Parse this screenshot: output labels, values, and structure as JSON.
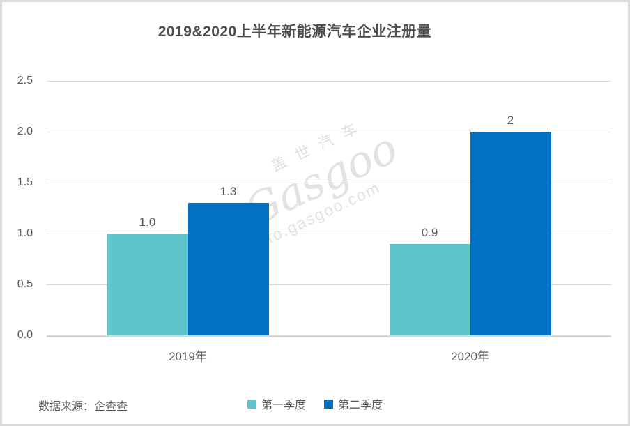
{
  "chart_data": {
    "type": "bar",
    "title": "2019&2020上半年新能源汽车企业注册量",
    "categories": [
      "2019年",
      "2020年"
    ],
    "series": [
      {
        "name": "第一季度",
        "color": "#5EC5CC",
        "values": [
          1.0,
          0.9
        ],
        "value_labels": [
          "1.0",
          "0.9"
        ]
      },
      {
        "name": "第二季度",
        "color": "#0071C5",
        "values": [
          1.3,
          2.0
        ],
        "value_labels": [
          "1.3",
          "2"
        ]
      }
    ],
    "xlabel": "",
    "ylabel": "",
    "ylim": [
      0,
      2.5
    ],
    "ytick_values": [
      0,
      0.5,
      1.0,
      1.5,
      2.0,
      2.5
    ],
    "ytick_labels": [
      "0.0",
      "0.5",
      "1.0",
      "1.5",
      "2.0",
      "2.5"
    ],
    "grid": true,
    "legend_position": "bottom"
  },
  "source_label": "数据来源：企查查",
  "watermark": {
    "brand_cn": "盖世汽车",
    "brand_en": "Gasgoo",
    "url": "auto.gasgoo.com"
  },
  "colors": {
    "grid": "#D9D9D9",
    "axis": "#D7D7D7",
    "text": "#595959",
    "title_text": "#4D4D4D",
    "border": "#D9D9D9"
  }
}
